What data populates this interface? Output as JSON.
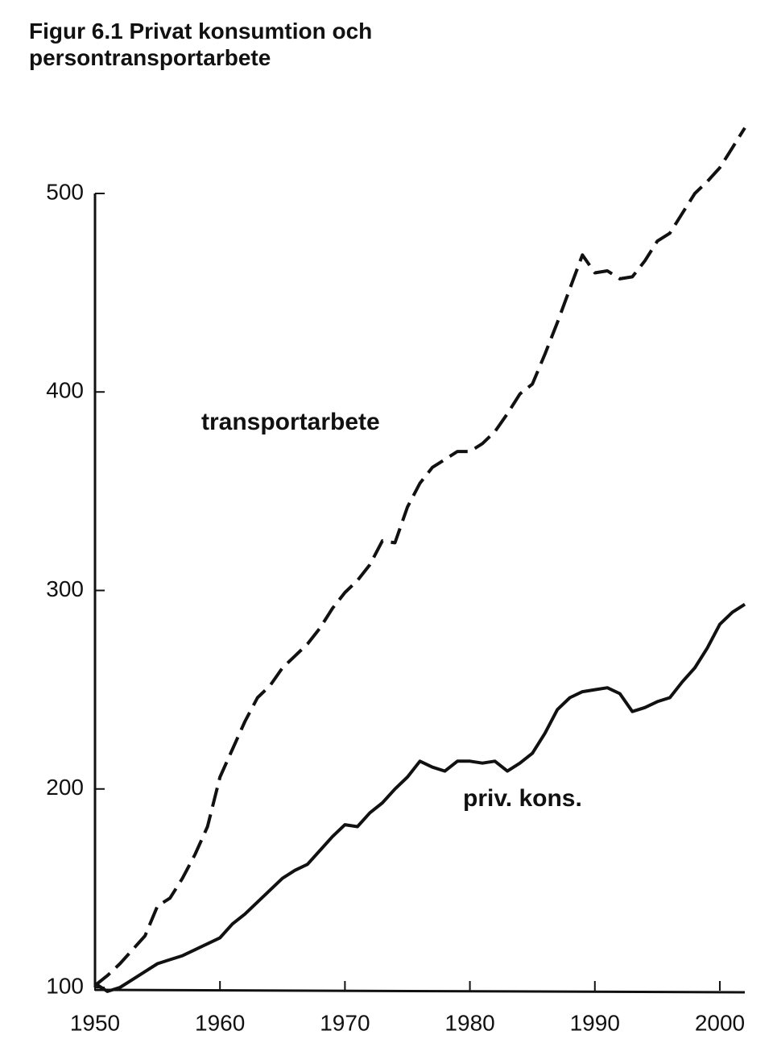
{
  "chart_data": {
    "type": "line",
    "title": "Figur 6.1  Privat konsumtion och persontransportarbete",
    "x": [
      1950,
      1951,
      1952,
      1953,
      1954,
      1955,
      1956,
      1957,
      1958,
      1959,
      1960,
      1961,
      1962,
      1963,
      1964,
      1965,
      1966,
      1967,
      1968,
      1969,
      1970,
      1971,
      1972,
      1973,
      1974,
      1975,
      1976,
      1977,
      1978,
      1979,
      1980,
      1981,
      1982,
      1983,
      1984,
      1985,
      1986,
      1987,
      1988,
      1989,
      1990,
      1991,
      1992,
      1993,
      1994,
      1995,
      1996,
      1997,
      1998,
      1999,
      2000,
      2001,
      2002
    ],
    "series": [
      {
        "name": "transportarbete",
        "color": "#111111",
        "line_style": "dashed",
        "values": [
          101,
          106,
          112,
          119,
          126,
          141,
          145,
          155,
          167,
          181,
          206,
          220,
          234,
          246,
          252,
          261,
          267,
          273,
          281,
          291,
          299,
          305,
          313,
          325,
          324,
          342,
          354,
          362,
          366,
          370,
          370,
          374,
          380,
          389,
          399,
          404,
          419,
          435,
          452,
          469,
          460,
          461,
          457,
          458,
          466,
          476,
          480,
          490,
          500,
          506,
          513,
          523,
          533
        ]
      },
      {
        "name": "priv. kons.",
        "color": "#111111",
        "line_style": "solid",
        "values": [
          102,
          98,
          100,
          104,
          108,
          112,
          114,
          116,
          119,
          122,
          125,
          132,
          137,
          143,
          149,
          155,
          159,
          162,
          169,
          176,
          182,
          181,
          188,
          193,
          200,
          206,
          214,
          211,
          209,
          214,
          214,
          213,
          214,
          209,
          213,
          218,
          228,
          240,
          246,
          249,
          250,
          251,
          248,
          239,
          241,
          244,
          246,
          254,
          261,
          271,
          283,
          289,
          293
        ]
      }
    ],
    "xlim": [
      1950,
      2002
    ],
    "xticks": [
      1950,
      1960,
      1970,
      1980,
      1990,
      2000
    ],
    "ylim": [
      100,
      500
    ],
    "yticks": [
      100,
      200,
      300,
      400,
      500
    ],
    "grid": false
  }
}
